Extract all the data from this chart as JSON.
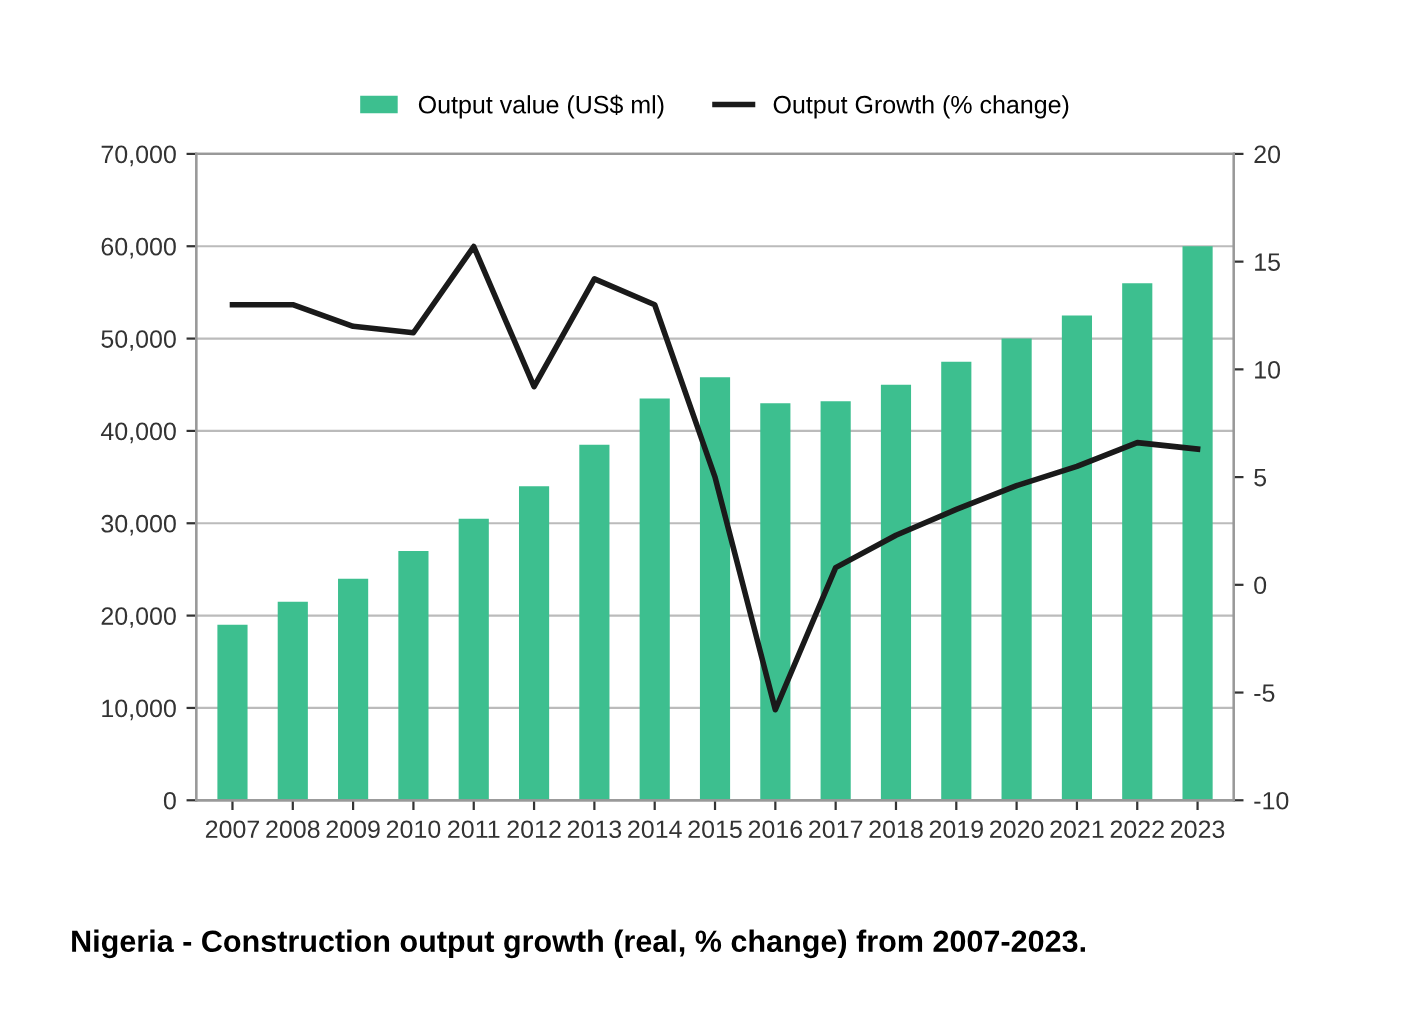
{
  "chart_data": {
    "type": "bar",
    "title": "Nigeria - Construction output growth (real, % change) from 2007-2023.",
    "categories": [
      "2007",
      "2008",
      "2009",
      "2010",
      "2011",
      "2012",
      "2013",
      "2014",
      "2015",
      "2016",
      "2017",
      "2018",
      "2019",
      "2020",
      "2021",
      "2022",
      "2023"
    ],
    "series": [
      {
        "name": "Output value (US$ ml)",
        "color": "#3dbf8f",
        "values": [
          19000,
          21500,
          24000,
          27000,
          30500,
          34000,
          38500,
          43500,
          45800,
          43000,
          43200,
          45000,
          47500,
          50000,
          52500,
          56000,
          60000
        ]
      },
      {
        "name": "Output Growth (% change)",
        "type": "line",
        "axis": "y2",
        "color": "#1a1a1a",
        "values": [
          13,
          13,
          12,
          11.7,
          15.7,
          9.2,
          14.2,
          13,
          5,
          -5.8,
          0.8,
          2.3,
          3.5,
          4.6,
          5.5,
          6.6,
          6.3
        ]
      }
    ],
    "ylim": [
      0,
      70000
    ],
    "yticks": [
      {
        "value": 0,
        "label": "0"
      },
      {
        "value": 10000,
        "label": "10,000"
      },
      {
        "value": 20000,
        "label": "20,000"
      },
      {
        "value": 30000,
        "label": "30,000"
      },
      {
        "value": 40000,
        "label": "40,000"
      },
      {
        "value": 50000,
        "label": "50,000"
      },
      {
        "value": 60000,
        "label": "60,000"
      },
      {
        "value": 70000,
        "label": "70,000"
      }
    ],
    "y2lim": [
      -10,
      20
    ],
    "y2ticks": [
      -10,
      -5,
      0,
      5,
      10,
      15,
      20
    ],
    "grid": "y",
    "legend": "top",
    "marker": "none",
    "line_style": "solid"
  }
}
